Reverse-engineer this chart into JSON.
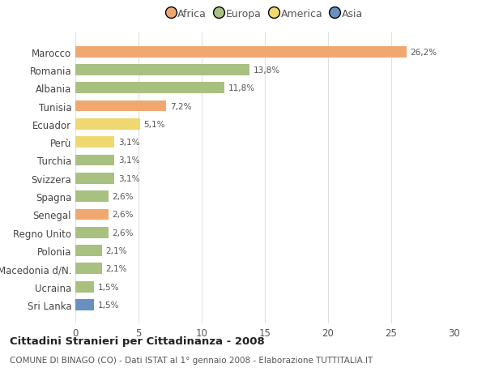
{
  "categories": [
    "Marocco",
    "Romania",
    "Albania",
    "Tunisia",
    "Ecuador",
    "Perù",
    "Turchia",
    "Svizzera",
    "Spagna",
    "Senegal",
    "Regno Unito",
    "Polonia",
    "Macedonia d/N.",
    "Ucraina",
    "Sri Lanka"
  ],
  "values": [
    26.2,
    13.8,
    11.8,
    7.2,
    5.1,
    3.1,
    3.1,
    3.1,
    2.6,
    2.6,
    2.6,
    2.1,
    2.1,
    1.5,
    1.5
  ],
  "bar_colors": [
    "#F0A870",
    "#A8C080",
    "#A8C080",
    "#F0A870",
    "#F0D870",
    "#F0D870",
    "#A8C080",
    "#A8C080",
    "#A8C080",
    "#F0A870",
    "#A8C080",
    "#A8C080",
    "#A8C080",
    "#A8C080",
    "#6890C0"
  ],
  "labels": [
    "26,2%",
    "13,8%",
    "11,8%",
    "7,2%",
    "5,1%",
    "3,1%",
    "3,1%",
    "3,1%",
    "2,6%",
    "2,6%",
    "2,6%",
    "2,1%",
    "2,1%",
    "1,5%",
    "1,5%"
  ],
  "legend_labels": [
    "Africa",
    "Europa",
    "America",
    "Asia"
  ],
  "legend_colors": [
    "#F0A870",
    "#A8C080",
    "#F0D870",
    "#6890C0"
  ],
  "title": "Cittadini Stranieri per Cittadinanza - 2008",
  "subtitle": "COMUNE DI BINAGO (CO) - Dati ISTAT al 1° gennaio 2008 - Elaborazione TUTTITALIA.IT",
  "xlim": [
    0,
    30
  ],
  "xticks": [
    0,
    5,
    10,
    15,
    20,
    25,
    30
  ],
  "background_color": "#ffffff",
  "grid_color": "#e0e0e0"
}
